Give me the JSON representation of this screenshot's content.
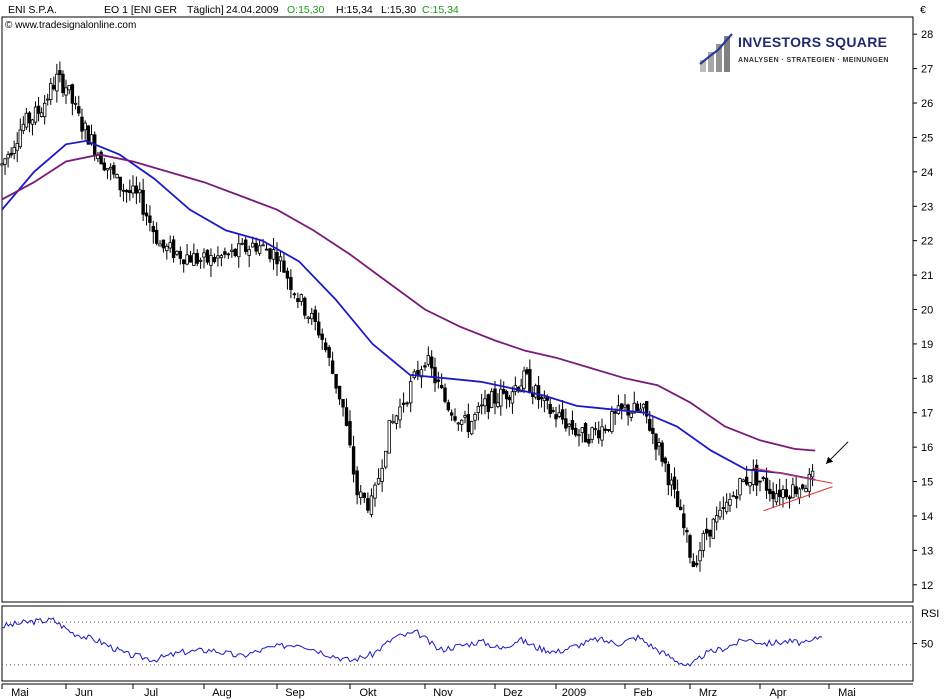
{
  "header": {
    "symbol": "ENI S.P.A.",
    "exchange": "EO 1 [ENI GER",
    "period": "Täglich]",
    "date": "24.04.2009",
    "open": "O:15,30",
    "high": "H:15,34",
    "low": "L:15,30",
    "close": "C:15,34",
    "copyright": "© www.tradesignalonline.com",
    "currency": "€"
  },
  "logo": {
    "title": "INVESTORS SQUARE",
    "subtitle": "ANALYSEN · STRATEGIEN · MEINUNGEN"
  },
  "colors": {
    "ma_fast": "#1a1ac8",
    "ma_slow": "#7a1a78",
    "trendline": "#e03030",
    "rsi": "#1a1ac8",
    "open_green": "#1a9a1a",
    "close_green": "#1a9a1a"
  },
  "chart_data": [
    {
      "type": "candlestick",
      "x_axis": [
        "Mai",
        "Jun",
        "Jul",
        "Aug",
        "Sep",
        "Okt",
        "Nov",
        "Dez",
        "2009",
        "Feb",
        "Mrz",
        "Apr",
        "Mai"
      ],
      "y_ticks": [
        12,
        13,
        14,
        15,
        16,
        17,
        18,
        19,
        20,
        21,
        22,
        23,
        24,
        25,
        26,
        27,
        28
      ],
      "ylim": [
        11.5,
        28.5
      ],
      "price_path": [
        {
          "m": 0.0,
          "v": 24.2
        },
        {
          "m": 0.3,
          "v": 25.3
        },
        {
          "m": 0.6,
          "v": 25.8
        },
        {
          "m": 0.85,
          "v": 26.7
        },
        {
          "m": 1.0,
          "v": 26.5
        },
        {
          "m": 1.2,
          "v": 25.5
        },
        {
          "m": 1.5,
          "v": 24.5
        },
        {
          "m": 1.8,
          "v": 23.6
        },
        {
          "m": 2.1,
          "v": 23.2
        },
        {
          "m": 2.4,
          "v": 21.8
        },
        {
          "m": 2.7,
          "v": 21.6
        },
        {
          "m": 3.0,
          "v": 21.4
        },
        {
          "m": 3.4,
          "v": 21.6
        },
        {
          "m": 3.7,
          "v": 21.9
        },
        {
          "m": 4.0,
          "v": 21.6
        },
        {
          "m": 4.3,
          "v": 20.3
        },
        {
          "m": 4.6,
          "v": 19.3
        },
        {
          "m": 4.9,
          "v": 17.2
        },
        {
          "m": 5.1,
          "v": 14.6
        },
        {
          "m": 5.3,
          "v": 14.3
        },
        {
          "m": 5.5,
          "v": 16.4
        },
        {
          "m": 5.75,
          "v": 17.5
        },
        {
          "m": 6.0,
          "v": 18.6
        },
        {
          "m": 6.3,
          "v": 17.3
        },
        {
          "m": 6.6,
          "v": 16.6
        },
        {
          "m": 6.9,
          "v": 17.3
        },
        {
          "m": 7.2,
          "v": 17.6
        },
        {
          "m": 7.5,
          "v": 18.0
        },
        {
          "m": 7.8,
          "v": 17.2
        },
        {
          "m": 8.1,
          "v": 16.8
        },
        {
          "m": 8.4,
          "v": 16.3
        },
        {
          "m": 8.7,
          "v": 16.6
        },
        {
          "m": 9.0,
          "v": 17.1
        },
        {
          "m": 9.3,
          "v": 17.0
        },
        {
          "m": 9.6,
          "v": 15.6
        },
        {
          "m": 9.85,
          "v": 14.0
        },
        {
          "m": 10.05,
          "v": 12.6
        },
        {
          "m": 10.25,
          "v": 13.6
        },
        {
          "m": 10.45,
          "v": 14.0
        },
        {
          "m": 10.7,
          "v": 14.9
        },
        {
          "m": 10.9,
          "v": 15.2
        },
        {
          "m": 11.2,
          "v": 14.7
        },
        {
          "m": 11.5,
          "v": 14.8
        },
        {
          "m": 11.8,
          "v": 15.1
        }
      ],
      "series": [
        {
          "name": "",
          "kind": "moving-average-fast",
          "values": [
            {
              "m": 0.0,
              "v": 22.9
            },
            {
              "m": 0.5,
              "v": 24.0
            },
            {
              "m": 1.0,
              "v": 24.8
            },
            {
              "m": 1.3,
              "v": 24.9
            },
            {
              "m": 1.8,
              "v": 24.5
            },
            {
              "m": 2.3,
              "v": 23.8
            },
            {
              "m": 2.8,
              "v": 22.9
            },
            {
              "m": 3.3,
              "v": 22.3
            },
            {
              "m": 3.8,
              "v": 22.0
            },
            {
              "m": 4.3,
              "v": 21.4
            },
            {
              "m": 4.8,
              "v": 20.3
            },
            {
              "m": 5.3,
              "v": 19.0
            },
            {
              "m": 5.8,
              "v": 18.1
            },
            {
              "m": 6.3,
              "v": 18.0
            },
            {
              "m": 6.8,
              "v": 17.9
            },
            {
              "m": 7.3,
              "v": 17.7
            },
            {
              "m": 7.8,
              "v": 17.5
            },
            {
              "m": 8.3,
              "v": 17.2
            },
            {
              "m": 8.8,
              "v": 17.1
            },
            {
              "m": 9.3,
              "v": 17.0
            },
            {
              "m": 9.8,
              "v": 16.6
            },
            {
              "m": 10.3,
              "v": 15.9
            },
            {
              "m": 10.8,
              "v": 15.35
            },
            {
              "m": 11.3,
              "v": 15.25
            },
            {
              "m": 11.8,
              "v": 15.05
            }
          ]
        },
        {
          "name": "",
          "kind": "moving-average-slow",
          "values": [
            {
              "m": 0.0,
              "v": 23.2
            },
            {
              "m": 0.5,
              "v": 23.7
            },
            {
              "m": 1.0,
              "v": 24.3
            },
            {
              "m": 1.5,
              "v": 24.5
            },
            {
              "m": 2.0,
              "v": 24.3
            },
            {
              "m": 2.5,
              "v": 24.0
            },
            {
              "m": 3.0,
              "v": 23.7
            },
            {
              "m": 3.5,
              "v": 23.3
            },
            {
              "m": 4.0,
              "v": 22.9
            },
            {
              "m": 4.5,
              "v": 22.3
            },
            {
              "m": 5.0,
              "v": 21.6
            },
            {
              "m": 5.5,
              "v": 20.8
            },
            {
              "m": 6.0,
              "v": 20.0
            },
            {
              "m": 6.5,
              "v": 19.5
            },
            {
              "m": 7.0,
              "v": 19.1
            },
            {
              "m": 7.5,
              "v": 18.8
            },
            {
              "m": 8.0,
              "v": 18.6
            },
            {
              "m": 8.5,
              "v": 18.3
            },
            {
              "m": 9.0,
              "v": 18.0
            },
            {
              "m": 9.5,
              "v": 17.8
            },
            {
              "m": 10.0,
              "v": 17.3
            },
            {
              "m": 10.5,
              "v": 16.6
            },
            {
              "m": 11.0,
              "v": 16.2
            },
            {
              "m": 11.5,
              "v": 15.95
            },
            {
              "m": 11.8,
              "v": 15.9
            }
          ]
        }
      ],
      "triangle": {
        "upper": [
          {
            "m": 10.9,
            "v": 15.4
          },
          {
            "m": 12.05,
            "v": 14.95
          }
        ],
        "lower": [
          {
            "m": 11.05,
            "v": 14.15
          },
          {
            "m": 12.05,
            "v": 14.85
          }
        ]
      },
      "arrow_target": {
        "m": 11.9,
        "v": 15.4
      },
      "grid": false
    },
    {
      "type": "line",
      "label": "RSI",
      "y_ticks": [
        50
      ],
      "ylim": [
        15,
        85
      ],
      "reference_levels": [
        30,
        70
      ],
      "values": [
        {
          "m": 0.0,
          "v": 66
        },
        {
          "m": 0.4,
          "v": 70
        },
        {
          "m": 0.8,
          "v": 72
        },
        {
          "m": 1.1,
          "v": 60
        },
        {
          "m": 1.5,
          "v": 52
        },
        {
          "m": 1.9,
          "v": 40
        },
        {
          "m": 2.3,
          "v": 35
        },
        {
          "m": 2.7,
          "v": 42
        },
        {
          "m": 3.1,
          "v": 44
        },
        {
          "m": 3.5,
          "v": 38
        },
        {
          "m": 3.9,
          "v": 46
        },
        {
          "m": 4.3,
          "v": 50
        },
        {
          "m": 4.7,
          "v": 40
        },
        {
          "m": 5.0,
          "v": 34
        },
        {
          "m": 5.3,
          "v": 40
        },
        {
          "m": 5.6,
          "v": 56
        },
        {
          "m": 5.9,
          "v": 60
        },
        {
          "m": 6.2,
          "v": 44
        },
        {
          "m": 6.5,
          "v": 48
        },
        {
          "m": 6.8,
          "v": 52
        },
        {
          "m": 7.1,
          "v": 45
        },
        {
          "m": 7.4,
          "v": 54
        },
        {
          "m": 7.7,
          "v": 46
        },
        {
          "m": 8.0,
          "v": 42
        },
        {
          "m": 8.3,
          "v": 48
        },
        {
          "m": 8.6,
          "v": 54
        },
        {
          "m": 8.9,
          "v": 50
        },
        {
          "m": 9.2,
          "v": 56
        },
        {
          "m": 9.5,
          "v": 44
        },
        {
          "m": 9.8,
          "v": 34
        },
        {
          "m": 10.0,
          "v": 28
        },
        {
          "m": 10.2,
          "v": 40
        },
        {
          "m": 10.5,
          "v": 46
        },
        {
          "m": 10.8,
          "v": 54
        },
        {
          "m": 11.1,
          "v": 50
        },
        {
          "m": 11.4,
          "v": 52
        },
        {
          "m": 11.7,
          "v": 50
        },
        {
          "m": 11.9,
          "v": 58
        }
      ],
      "grid": false
    }
  ]
}
